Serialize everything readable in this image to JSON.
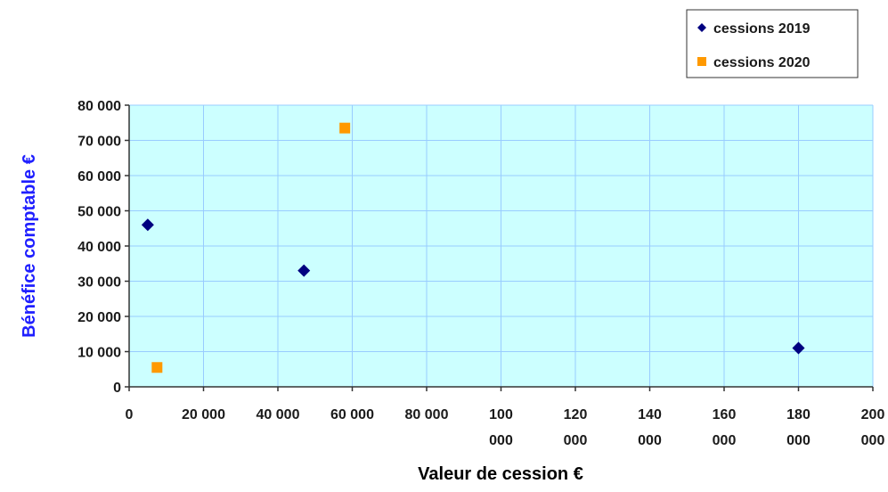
{
  "chart_data": {
    "type": "scatter",
    "title": "",
    "xlabel": "Valeur de cession €",
    "ylabel": "Bénéfice comptable €",
    "xlim": [
      0,
      200000
    ],
    "ylim": [
      0,
      80000
    ],
    "grid": true,
    "legend_position": "top-right",
    "x_ticks": [
      {
        "value": 0,
        "lines": [
          "0"
        ]
      },
      {
        "value": 20000,
        "lines": [
          "20 000"
        ]
      },
      {
        "value": 40000,
        "lines": [
          "40 000"
        ]
      },
      {
        "value": 60000,
        "lines": [
          "60 000"
        ]
      },
      {
        "value": 80000,
        "lines": [
          "80 000"
        ]
      },
      {
        "value": 100000,
        "lines": [
          "100",
          "000"
        ]
      },
      {
        "value": 120000,
        "lines": [
          "120",
          "000"
        ]
      },
      {
        "value": 140000,
        "lines": [
          "140",
          "000"
        ]
      },
      {
        "value": 160000,
        "lines": [
          "160",
          "000"
        ]
      },
      {
        "value": 180000,
        "lines": [
          "180",
          "000"
        ]
      },
      {
        "value": 200000,
        "lines": [
          "200",
          "000"
        ]
      }
    ],
    "y_ticks": [
      {
        "value": 0,
        "label": "0"
      },
      {
        "value": 10000,
        "label": "10 000"
      },
      {
        "value": 20000,
        "label": "20 000"
      },
      {
        "value": 30000,
        "label": "30 000"
      },
      {
        "value": 40000,
        "label": "40 000"
      },
      {
        "value": 50000,
        "label": "50 000"
      },
      {
        "value": 60000,
        "label": "60 000"
      },
      {
        "value": 70000,
        "label": "70 000"
      },
      {
        "value": 80000,
        "label": "80 000"
      }
    ],
    "series": [
      {
        "name": "cessions 2019",
        "marker": "diamond",
        "color": "#000080",
        "points": [
          {
            "x": 5000,
            "y": 46000
          },
          {
            "x": 47000,
            "y": 33000
          },
          {
            "x": 180000,
            "y": 11000
          }
        ]
      },
      {
        "name": "cessions 2020",
        "marker": "square",
        "color": "#ff9900",
        "points": [
          {
            "x": 7500,
            "y": 5500
          },
          {
            "x": 58000,
            "y": 73500
          }
        ]
      }
    ]
  },
  "colors": {
    "plot_background": "#ccffff",
    "gridline": "#99ccff",
    "axis": "#333333",
    "ylabel_color": "#1f1fff",
    "xlabel_color": "#000000"
  }
}
